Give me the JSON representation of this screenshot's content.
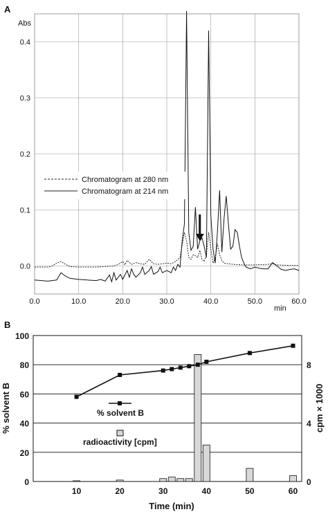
{
  "panel_a": {
    "label": "A",
    "y_unit": "Abs",
    "x_unit": "min",
    "legend": [
      {
        "label": "Chromatogram at 280 nm",
        "style": "dashed"
      },
      {
        "label": "Chromatogram at 214 nm",
        "style": "solid"
      }
    ]
  },
  "panel_b": {
    "label": "B",
    "y_left_label": "% solvent B",
    "y_right_label": "cpm × 1000",
    "x_label": "Time (min)",
    "legend": [
      {
        "label": "% solvent B",
        "marker": "square-line"
      },
      {
        "label": "radioactivity [cpm]",
        "marker": "gray-bar"
      }
    ]
  },
  "chart_data": [
    {
      "type": "line",
      "panel": "A",
      "xlabel": "min",
      "ylabel": "Abs",
      "xlim": [
        0,
        60
      ],
      "ylim": [
        -0.05,
        0.45
      ],
      "x_ticks": [
        "0.0",
        "10.0",
        "20.0",
        "30.0",
        "40.0",
        "50.0",
        "60.0"
      ],
      "y_ticks": [
        "0.0",
        "0.1",
        "0.2",
        "0.3",
        "0.4"
      ],
      "annotations": [
        {
          "type": "arrow",
          "x": 37.5,
          "y": 0.045
        }
      ],
      "series": [
        {
          "name": "Chromatogram at 214 nm",
          "style": "solid",
          "points": [
            [
              0,
              -0.025
            ],
            [
              3,
              -0.027
            ],
            [
              5,
              -0.025
            ],
            [
              6,
              -0.012
            ],
            [
              7,
              -0.018
            ],
            [
              8,
              -0.022
            ],
            [
              10,
              -0.024
            ],
            [
              12,
              -0.025
            ],
            [
              14,
              -0.026
            ],
            [
              15,
              -0.024
            ],
            [
              16,
              -0.027
            ],
            [
              17,
              -0.016
            ],
            [
              17.5,
              -0.028
            ],
            [
              18,
              -0.012
            ],
            [
              18.5,
              -0.025
            ],
            [
              19.5,
              -0.015
            ],
            [
              20,
              -0.024
            ],
            [
              21,
              -0.008
            ],
            [
              21.5,
              -0.02
            ],
            [
              22,
              -0.005
            ],
            [
              22.5,
              -0.015
            ],
            [
              23,
              -0.02
            ],
            [
              24,
              -0.012
            ],
            [
              24.5,
              -0.002
            ],
            [
              25,
              -0.015
            ],
            [
              26,
              -0.008
            ],
            [
              26.5,
              -0.001
            ],
            [
              27,
              -0.015
            ],
            [
              28,
              -0.01
            ],
            [
              28.5,
              -0.002
            ],
            [
              29,
              -0.012
            ],
            [
              30,
              -0.008
            ],
            [
              31,
              -0.012
            ],
            [
              31.5,
              -0.002
            ],
            [
              32,
              -0.008
            ],
            [
              32.5,
              0.003
            ],
            [
              33,
              -0.002
            ],
            [
              33.5,
              0.045
            ],
            [
              34,
              0.075
            ],
            [
              34.5,
              0.455
            ],
            [
              35,
              0.06
            ],
            [
              35.5,
              0.028
            ],
            [
              36,
              0.035
            ],
            [
              36.5,
              0.105
            ],
            [
              37,
              0.03
            ],
            [
              37.5,
              0.045
            ],
            [
              38,
              0.05
            ],
            [
              38.5,
              0.035
            ],
            [
              39,
              0.015
            ],
            [
              39.5,
              0.42
            ],
            [
              40,
              0.09
            ],
            [
              40.5,
              0.03
            ],
            [
              41,
              0.005
            ],
            [
              41.5,
              0.06
            ],
            [
              42,
              0.135
            ],
            [
              42.5,
              0.025
            ],
            [
              43,
              0.085
            ],
            [
              43.5,
              0.125
            ],
            [
              44,
              0.075
            ],
            [
              44.5,
              0.03
            ],
            [
              45,
              0.035
            ],
            [
              45.5,
              0.065
            ],
            [
              46,
              0.06
            ],
            [
              46.5,
              0.035
            ],
            [
              47,
              0.015
            ],
            [
              47.5,
              0.005
            ],
            [
              48,
              -0.002
            ],
            [
              49,
              -0.005
            ],
            [
              50,
              -0.002
            ],
            [
              51,
              -0.004
            ],
            [
              52,
              -0.005
            ],
            [
              53,
              -0.005
            ],
            [
              54,
              0.006
            ],
            [
              55,
              0.0
            ],
            [
              56,
              -0.006
            ],
            [
              57,
              -0.008
            ],
            [
              58,
              -0.006
            ],
            [
              59,
              -0.005
            ],
            [
              60,
              -0.008
            ]
          ]
        },
        {
          "name": "Chromatogram at 280 nm",
          "style": "dashed",
          "points": [
            [
              0,
              -0.002
            ],
            [
              3,
              -0.002
            ],
            [
              4,
              0.0
            ],
            [
              5,
              0.005
            ],
            [
              6,
              0.008
            ],
            [
              7,
              0.003
            ],
            [
              8,
              -0.001
            ],
            [
              10,
              -0.002
            ],
            [
              14,
              -0.002
            ],
            [
              16,
              -0.001
            ],
            [
              18,
              0.0
            ],
            [
              19,
              0.003
            ],
            [
              20,
              0.008
            ],
            [
              20.5,
              0.002
            ],
            [
              21,
              0.01
            ],
            [
              22,
              0.003
            ],
            [
              23,
              0.006
            ],
            [
              24,
              0.004
            ],
            [
              25,
              0.003
            ],
            [
              26,
              0.012
            ],
            [
              27,
              0.004
            ],
            [
              28,
              0.003
            ],
            [
              29,
              0.004
            ],
            [
              30,
              0.005
            ],
            [
              31,
              0.004
            ],
            [
              32,
              0.008
            ],
            [
              33,
              0.015
            ],
            [
              34,
              0.06
            ],
            [
              34.5,
              0.045
            ],
            [
              35,
              0.015
            ],
            [
              35.5,
              0.012
            ],
            [
              36,
              0.02
            ],
            [
              36.5,
              0.018
            ],
            [
              37,
              0.015
            ],
            [
              37.5,
              0.028
            ],
            [
              38,
              0.012
            ],
            [
              38.5,
              0.008
            ],
            [
              39,
              0.02
            ],
            [
              39.5,
              0.06
            ],
            [
              40,
              0.03
            ],
            [
              40.5,
              0.005
            ],
            [
              41,
              0.015
            ],
            [
              41.5,
              0.04
            ],
            [
              42,
              0.02
            ],
            [
              42.5,
              0.01
            ],
            [
              43,
              0.005
            ],
            [
              44,
              0.004
            ],
            [
              45,
              0.003
            ],
            [
              47,
              0.002
            ],
            [
              50,
              0.002
            ],
            [
              53,
              0.003
            ],
            [
              54,
              0.004
            ],
            [
              55,
              0.002
            ],
            [
              58,
              0.001
            ],
            [
              60,
              0.001
            ]
          ]
        }
      ]
    },
    {
      "type": "bar",
      "panel": "B",
      "xlabel": "Time (min)",
      "ylabel": "% solvent B",
      "y2label": "cpm × 1000",
      "xlim": [
        0,
        62
      ],
      "ylim": [
        0,
        100
      ],
      "y2lim": [
        0,
        10
      ],
      "x_ticks": [
        "10",
        "20",
        "30",
        "40",
        "50",
        "60"
      ],
      "y_ticks": [
        "0",
        "20",
        "40",
        "60",
        "80",
        "100"
      ],
      "y2_ticks": [
        "0",
        "4",
        "8"
      ],
      "series": [
        {
          "name": "% solvent B",
          "kind": "line-square",
          "axis": "left",
          "x": [
            10,
            20,
            30,
            32,
            34,
            36,
            38,
            40,
            50,
            60
          ],
          "values": [
            58,
            73,
            76,
            77,
            78,
            79,
            80,
            82,
            88,
            93
          ]
        },
        {
          "name": "radioactivity [cpm]",
          "kind": "bar",
          "axis": "right",
          "x": [
            10,
            20,
            30,
            32,
            34,
            36,
            38,
            40,
            50,
            60
          ],
          "values": [
            0.05,
            0.1,
            0.2,
            0.3,
            0.2,
            0.2,
            8.7,
            2.5,
            0.9,
            0.4
          ]
        }
      ]
    }
  ]
}
